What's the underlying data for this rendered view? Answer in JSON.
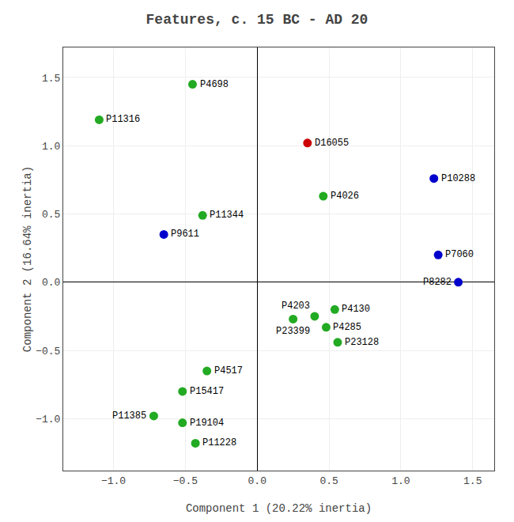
{
  "chart_data": {
    "type": "scatter",
    "title": "Features, c. 15 BC - AD 20",
    "x_label": "Component 1 (20.22% inertia)",
    "y_label": "Component 2 (16.64% inertia)",
    "xlim": [
      -1.35,
      1.65
    ],
    "ylim": [
      -1.38,
      1.72
    ],
    "xticks": [
      {
        "value": -1.0,
        "label": "−1.0"
      },
      {
        "value": -0.5,
        "label": "−0.5"
      },
      {
        "value": 0.0,
        "label": "0.0"
      },
      0.5,
      {
        "value": 1.0,
        "label": "1.0"
      },
      1.5
    ],
    "yticks": [
      {
        "value": -1.0,
        "label": "−1.0"
      },
      {
        "value": -0.5,
        "label": "−0.5"
      },
      {
        "value": 0.0,
        "label": "0.0"
      },
      0.5,
      {
        "value": 1.0,
        "label": "1.0"
      },
      1.5
    ],
    "grid": true,
    "point_labels": [
      "P4698",
      "P11316",
      "D16055",
      "P4026",
      "P10288",
      "P11344",
      "P9611",
      "P7060",
      "P8282",
      "P4130",
      "P4203",
      "P23399",
      "P4285",
      "P23128",
      "P4517",
      "P15417",
      "P11385",
      "P19104",
      "P11228"
    ],
    "x": [
      -0.45,
      -1.1,
      0.35,
      0.46,
      1.23,
      -0.38,
      -0.65,
      1.26,
      1.4,
      0.54,
      0.4,
      0.25,
      0.48,
      0.56,
      -0.35,
      -0.52,
      -0.72,
      -0.52,
      -0.43
    ],
    "values": [
      1.45,
      1.19,
      1.02,
      0.63,
      0.76,
      0.49,
      0.35,
      0.2,
      0.0,
      -0.2,
      -0.25,
      -0.27,
      -0.33,
      -0.44,
      -0.65,
      -0.8,
      -0.98,
      -1.03,
      -1.18
    ],
    "colors": [
      "#22aa22",
      "#22aa22",
      "#cc0000",
      "#22aa22",
      "#0000cc",
      "#22aa22",
      "#0000cc",
      "#0000cc",
      "#0000cc",
      "#22aa22",
      "#22aa22",
      "#22aa22",
      "#22aa22",
      "#22aa22",
      "#22aa22",
      "#22aa22",
      "#22aa22",
      "#22aa22",
      "#22aa22"
    ]
  }
}
